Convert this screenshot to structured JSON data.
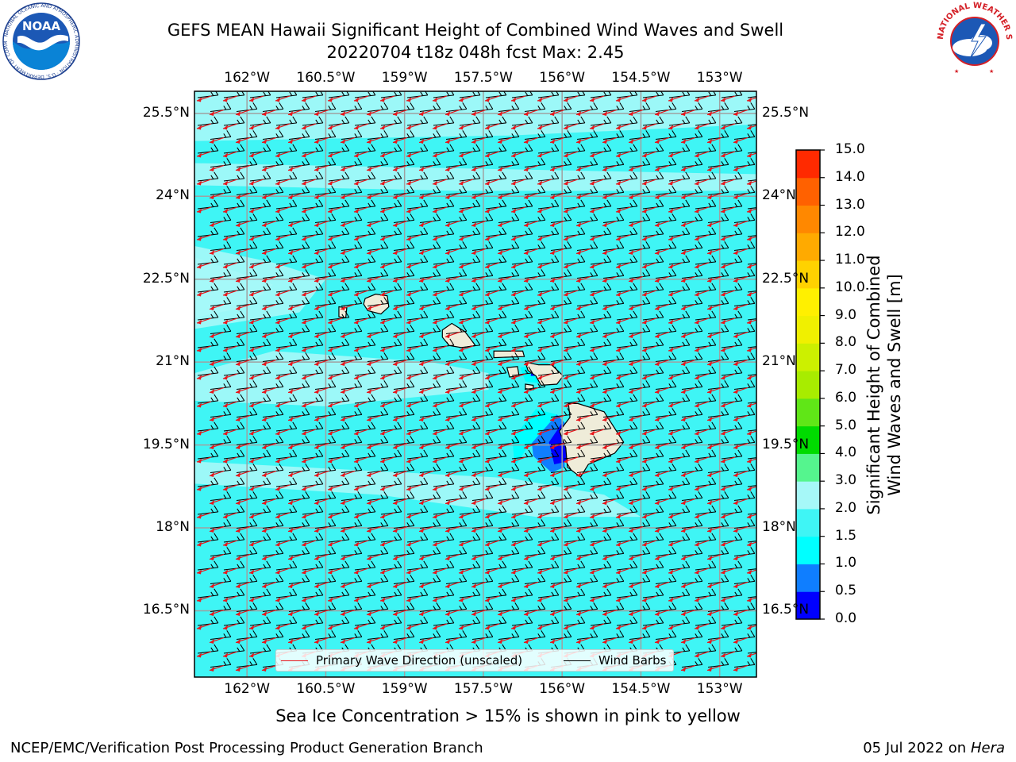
{
  "title": {
    "line1": "GEFS MEAN Hawaii Significant Height of Combined Wind Waves and Swell",
    "line2": "20220704 t18z 048h fcst   Max: 2.45"
  },
  "map": {
    "lon_labels": [
      "162°W",
      "160.5°W",
      "159°W",
      "157.5°W",
      "156°W",
      "154.5°W",
      "153°W"
    ],
    "lat_labels": [
      "25.5°N",
      "24°N",
      "22.5°N",
      "21°N",
      "19.5°N",
      "18°N",
      "16.5°N"
    ],
    "lon_range": [
      -163.0,
      -152.3
    ],
    "lat_range": [
      15.3,
      25.9
    ],
    "ocean_color": "#3ff5f5",
    "calm_color": "#a6f8f8",
    "land_color": "#efecd9",
    "islands": [
      "Niihau",
      "Kauai",
      "Oahu",
      "Molokai",
      "Lanai",
      "Maui",
      "Kahoolawe",
      "Hawaii"
    ]
  },
  "legend": {
    "wave_label": "Primary Wave Direction (unscaled)",
    "wave_color": "#e8161b",
    "barb_label": "Wind Barbs",
    "barb_color": "#000000"
  },
  "colorbar": {
    "title_line1": "Significant Height of Combined",
    "title_line2": "Wind Waves and Swell [m]",
    "ticks": [
      "0.0",
      "0.5",
      "1.0",
      "1.5",
      "2.0",
      "3.0",
      "4.0",
      "5.0",
      "6.0",
      "7.0",
      "8.0",
      "9.0",
      "10.0",
      "11.0",
      "12.0",
      "13.0",
      "14.0",
      "15.0"
    ],
    "colors": [
      "#0000ff",
      "#0f7eff",
      "#00ffff",
      "#3ff5f5",
      "#a6f8f8",
      "#55f58e",
      "#00db00",
      "#60e617",
      "#a8ec00",
      "#ccf000",
      "#f0f000",
      "#fff000",
      "#ffd200",
      "#ffaa00",
      "#ff8800",
      "#ff6100",
      "#ff2a00"
    ]
  },
  "subtitle": "Sea Ice Concentration > 15% is shown in pink to yellow",
  "credit_left": "NCEP/EMC/Verification Post Processing Product Generation Branch",
  "credit_date": "05 Jul 2022 on ",
  "credit_host": "Hera",
  "logos": {
    "noaa_text": "NOAA",
    "noaa_ring_text": "NATIONAL OCEANIC AND ATMOSPHERIC ADMINISTRATION · U.S. DEPARTMENT OF COMMERCE",
    "nws_ring_text": "NATIONAL WEATHER SERVICE"
  }
}
